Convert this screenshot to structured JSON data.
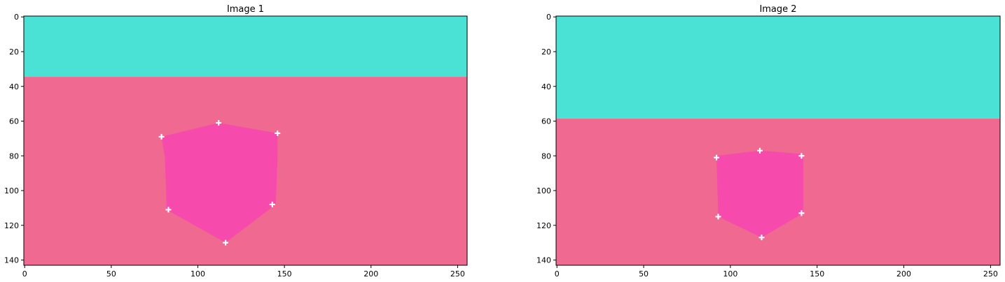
{
  "chart_data": [
    {
      "type": "image",
      "title": "Image 1",
      "xlim": [
        0,
        255
      ],
      "ylim": [
        143,
        0
      ],
      "xticks": [
        0,
        50,
        100,
        150,
        200,
        250
      ],
      "yticks": [
        0,
        20,
        40,
        60,
        80,
        100,
        120,
        140
      ],
      "regions": {
        "sky": {
          "color": "#4ae2d4",
          "y_range": [
            0,
            34.5
          ]
        },
        "ground": {
          "color": "#ef6990",
          "y_range": [
            34.5,
            143
          ]
        },
        "object": {
          "color": "#f74aad",
          "polygon": [
            [
              79,
              69
            ],
            [
              112,
              61
            ],
            [
              146,
              67
            ],
            [
              146,
              81
            ],
            [
              145,
              108
            ],
            [
              116,
              130
            ],
            [
              82,
              111
            ],
            [
              81,
              81
            ]
          ]
        }
      },
      "keypoints": [
        [
          112,
          61
        ],
        [
          146,
          67
        ],
        [
          79,
          69
        ],
        [
          143,
          108
        ],
        [
          83,
          111
        ],
        [
          116,
          130
        ]
      ]
    },
    {
      "type": "image",
      "title": "Image 2",
      "xlim": [
        0,
        255
      ],
      "ylim": [
        143,
        0
      ],
      "xticks": [
        0,
        50,
        100,
        150,
        200,
        250
      ],
      "yticks": [
        0,
        20,
        40,
        60,
        80,
        100,
        120,
        140
      ],
      "regions": {
        "sky": {
          "color": "#4ae2d4",
          "y_range": [
            0,
            58.5
          ]
        },
        "ground": {
          "color": "#ef6990",
          "y_range": [
            58.5,
            143
          ]
        },
        "object": {
          "color": "#f74aad",
          "polygon": [
            [
              92,
              80
            ],
            [
              117,
              77
            ],
            [
              142,
              79
            ],
            [
              142,
              113
            ],
            [
              118,
              127
            ],
            [
              93,
              115
            ]
          ]
        }
      },
      "keypoints": [
        [
          117,
          77
        ],
        [
          141,
          80
        ],
        [
          92,
          81
        ],
        [
          141,
          113
        ],
        [
          93,
          115
        ],
        [
          118,
          127
        ]
      ]
    }
  ]
}
